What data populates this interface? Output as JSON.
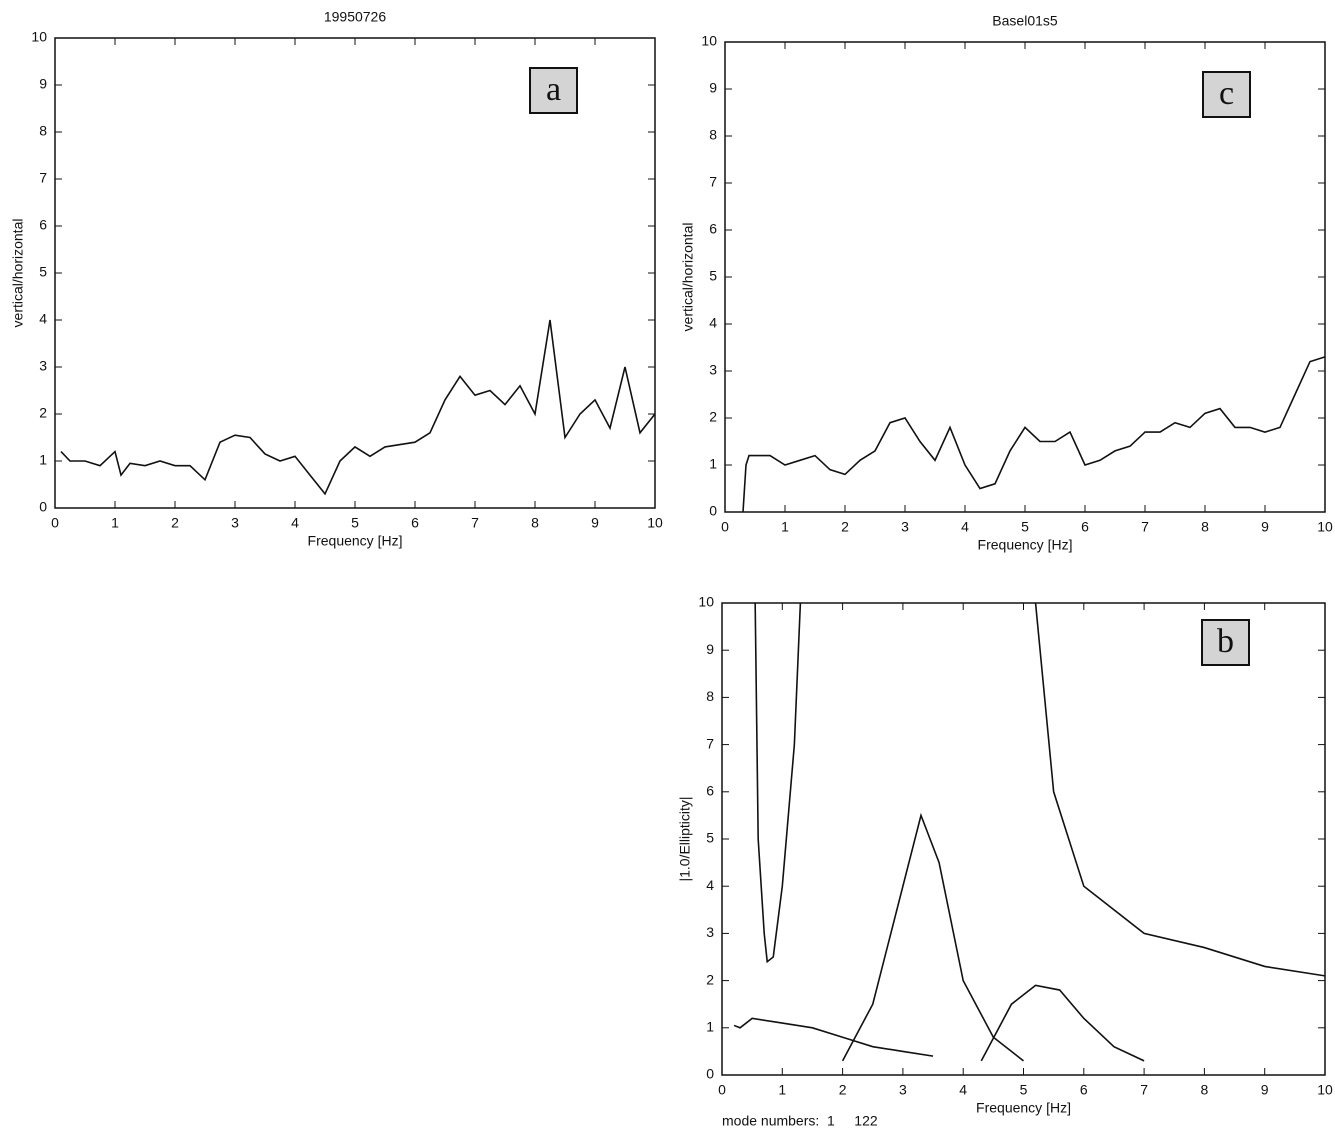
{
  "chart_data": [
    {
      "type": "line",
      "title": "19950726",
      "x_label": "Frequency [Hz]",
      "y_label": "vertical/horizontal",
      "panel_label": "a",
      "xlim": [
        0,
        10
      ],
      "ylim": [
        0,
        10
      ],
      "xticks": [
        0,
        1,
        2,
        3,
        4,
        5,
        6,
        7,
        8,
        9,
        10
      ],
      "yticks": [
        0,
        1,
        2,
        3,
        4,
        5,
        6,
        7,
        8,
        9,
        10
      ],
      "series": [
        {
          "color": "#111111",
          "x": [
            0.1,
            0.25,
            0.5,
            0.75,
            1.0,
            1.1,
            1.25,
            1.5,
            1.75,
            2.0,
            2.25,
            2.5,
            2.75,
            3.0,
            3.25,
            3.5,
            3.75,
            4.0,
            4.25,
            4.5,
            4.75,
            5.0,
            5.25,
            5.5,
            5.75,
            6.0,
            6.25,
            6.5,
            6.75,
            7.0,
            7.25,
            7.5,
            7.75,
            8.0,
            8.25,
            8.5,
            8.75,
            9.0,
            9.25,
            9.5,
            9.75,
            10.0
          ],
          "values": [
            1.2,
            1.0,
            1.0,
            0.9,
            1.2,
            0.7,
            0.95,
            0.9,
            1.0,
            0.9,
            0.9,
            0.6,
            1.4,
            1.55,
            1.5,
            1.15,
            1.0,
            1.1,
            0.7,
            0.3,
            1.0,
            1.3,
            1.1,
            1.3,
            1.35,
            1.4,
            1.6,
            2.3,
            2.8,
            2.4,
            2.5,
            2.2,
            2.6,
            2.0,
            4.0,
            1.5,
            2.0,
            2.3,
            1.7,
            3.0,
            1.6,
            2.0
          ]
        }
      ]
    },
    {
      "type": "line",
      "title": "Basel01s5",
      "x_label": "Frequency [Hz]",
      "y_label": "vertical/horizontal",
      "panel_label": "c",
      "xlim": [
        0,
        10
      ],
      "ylim": [
        0,
        10
      ],
      "xticks": [
        0,
        1,
        2,
        3,
        4,
        5,
        6,
        7,
        8,
        9,
        10
      ],
      "yticks": [
        0,
        1,
        2,
        3,
        4,
        5,
        6,
        7,
        8,
        9,
        10
      ],
      "series": [
        {
          "color": "#111111",
          "x": [
            0.3,
            0.35,
            0.4,
            0.75,
            1.0,
            1.25,
            1.5,
            1.75,
            2.0,
            2.25,
            2.5,
            2.75,
            3.0,
            3.25,
            3.5,
            3.75,
            4.0,
            4.25,
            4.5,
            4.75,
            5.0,
            5.25,
            5.5,
            5.75,
            6.0,
            6.25,
            6.5,
            6.75,
            7.0,
            7.25,
            7.5,
            7.75,
            8.0,
            8.25,
            8.5,
            8.75,
            9.0,
            9.25,
            9.5,
            9.75,
            10.0
          ],
          "values": [
            0,
            1.0,
            1.2,
            1.2,
            1.0,
            1.1,
            1.2,
            0.9,
            0.8,
            1.1,
            1.3,
            1.9,
            2.0,
            1.5,
            1.1,
            1.8,
            1.0,
            0.5,
            0.6,
            1.3,
            1.8,
            1.5,
            1.5,
            1.7,
            1.0,
            1.1,
            1.3,
            1.4,
            1.7,
            1.7,
            1.9,
            1.8,
            2.1,
            2.2,
            1.8,
            1.8,
            1.7,
            1.8,
            2.5,
            3.2,
            3.3
          ]
        }
      ]
    },
    {
      "type": "line",
      "x_label": "Frequency [Hz]",
      "y_label": "|1.0/Ellipticity|",
      "panel_label": "b",
      "annotation": "mode numbers:  1     122",
      "xlim": [
        0,
        10
      ],
      "ylim": [
        0,
        10
      ],
      "xticks": [
        0,
        1,
        2,
        3,
        4,
        5,
        6,
        7,
        8,
        9,
        10
      ],
      "yticks": [
        0,
        1,
        2,
        3,
        4,
        5,
        6,
        7,
        8,
        9,
        10
      ],
      "series": [
        {
          "color": "#111111",
          "x": [
            0.2,
            0.3,
            0.5,
            1.0,
            1.5,
            2.0,
            2.5,
            3.0,
            3.5
          ],
          "values": [
            1.05,
            1.0,
            1.2,
            1.1,
            1.0,
            0.8,
            0.6,
            0.5,
            0.4
          ]
        },
        {
          "color": "#111111",
          "x": [
            0.55,
            0.6,
            0.7,
            0.75,
            0.85,
            1.0,
            1.2,
            1.3
          ],
          "values": [
            10,
            5,
            3,
            2.4,
            2.5,
            4.0,
            7,
            10
          ]
        },
        {
          "color": "#111111",
          "x": [
            2.0,
            2.5,
            3.0,
            3.3,
            3.6,
            4.0,
            4.5,
            5.0
          ],
          "values": [
            0.3,
            1.5,
            4.0,
            5.5,
            4.5,
            2.0,
            0.8,
            0.3
          ]
        },
        {
          "color": "#111111",
          "x": [
            4.3,
            4.8,
            5.2,
            5.6,
            6.0,
            6.5,
            7.0
          ],
          "values": [
            0.3,
            1.5,
            1.9,
            1.8,
            1.2,
            0.6,
            0.3
          ]
        },
        {
          "color": "#111111",
          "x": [
            5.2,
            5.5,
            6.0,
            7.0,
            8.0,
            9.0,
            10.0
          ],
          "values": [
            10,
            6,
            4,
            3,
            2.7,
            2.3,
            2.1
          ]
        }
      ]
    }
  ]
}
